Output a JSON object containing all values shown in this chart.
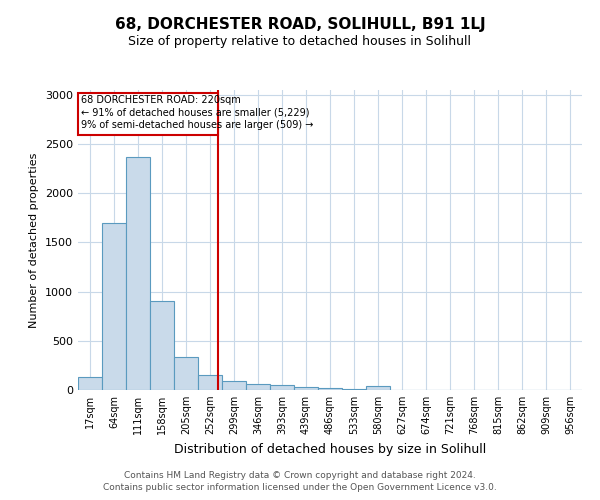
{
  "title": "68, DORCHESTER ROAD, SOLIHULL, B91 1LJ",
  "subtitle": "Size of property relative to detached houses in Solihull",
  "xlabel": "Distribution of detached houses by size in Solihull",
  "ylabel": "Number of detached properties",
  "footer_line1": "Contains HM Land Registry data © Crown copyright and database right 2024.",
  "footer_line2": "Contains public sector information licensed under the Open Government Licence v3.0.",
  "bin_labels": [
    "17sqm",
    "64sqm",
    "111sqm",
    "158sqm",
    "205sqm",
    "252sqm",
    "299sqm",
    "346sqm",
    "393sqm",
    "439sqm",
    "486sqm",
    "533sqm",
    "580sqm",
    "627sqm",
    "674sqm",
    "721sqm",
    "768sqm",
    "815sqm",
    "862sqm",
    "909sqm",
    "956sqm"
  ],
  "bar_heights": [
    130,
    1700,
    2370,
    900,
    340,
    155,
    90,
    60,
    50,
    30,
    20,
    15,
    40,
    0,
    0,
    0,
    0,
    0,
    0,
    0,
    0
  ],
  "bar_color": "#c9daea",
  "bar_edge_color": "#5a9abf",
  "property_line_x": 5.32,
  "property_line_color": "#cc0000",
  "annotation_title": "68 DORCHESTER ROAD: 220sqm",
  "annotation_line1": "← 91% of detached houses are smaller (5,229)",
  "annotation_line2": "9% of semi-detached houses are larger (509) →",
  "annotation_box_color": "#cc0000",
  "ylim": [
    0,
    3050
  ],
  "yticks": [
    0,
    500,
    1000,
    1500,
    2000,
    2500,
    3000
  ],
  "background_color": "#ffffff",
  "grid_color": "#c8d8e8",
  "title_fontsize": 11,
  "subtitle_fontsize": 9
}
